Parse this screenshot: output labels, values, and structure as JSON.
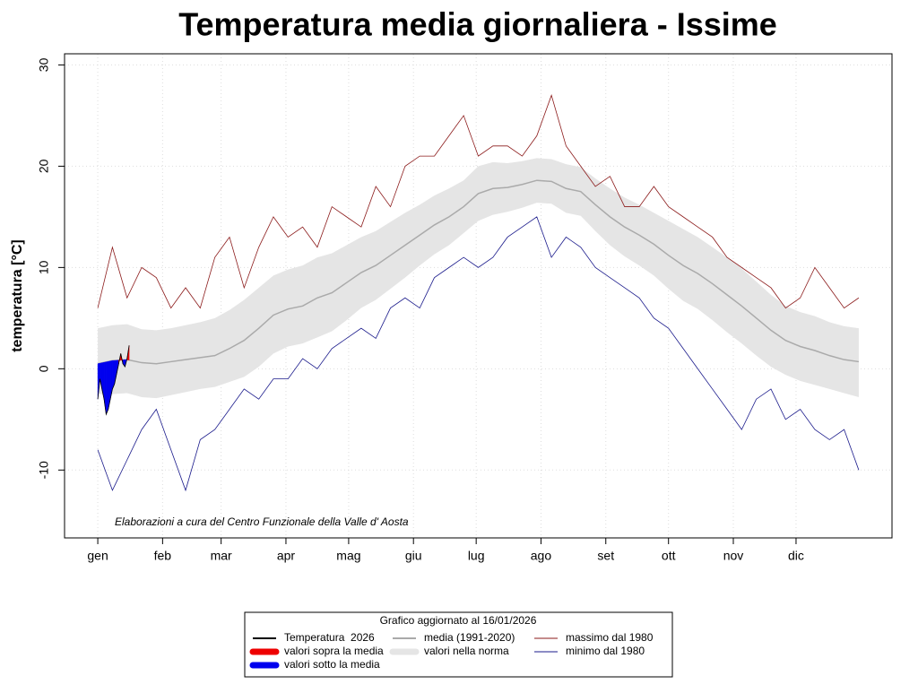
{
  "chart_data": {
    "type": "line",
    "title": "Temperatura media giornaliera - Issime",
    "ylabel": "temperatura [°C]",
    "annotation": "Elaborazioni a cura del Centro Funzionale della Valle d' Aosta",
    "update_note": "Grafico aggiornato al 16/01/2026",
    "xlim": [
      -14.9,
      380.9
    ],
    "ylim": [
      -16.7,
      31.1
    ],
    "xticks": [
      {
        "value": 1,
        "label": "gen"
      },
      {
        "value": 32,
        "label": "feb"
      },
      {
        "value": 60,
        "label": "mar"
      },
      {
        "value": 91,
        "label": "apr"
      },
      {
        "value": 121,
        "label": "mag"
      },
      {
        "value": 152,
        "label": "giu"
      },
      {
        "value": 182,
        "label": "lug"
      },
      {
        "value": 213,
        "label": "ago"
      },
      {
        "value": 244,
        "label": "set"
      },
      {
        "value": 274,
        "label": "ott"
      },
      {
        "value": 305,
        "label": "nov"
      },
      {
        "value": 335,
        "label": "dic"
      }
    ],
    "yticks": [
      -10,
      0,
      10,
      20,
      30
    ],
    "grid": true,
    "x": [
      1,
      8,
      15,
      22,
      29,
      36,
      43,
      50,
      57,
      64,
      71,
      78,
      85,
      92,
      99,
      106,
      113,
      120,
      127,
      134,
      141,
      148,
      155,
      162,
      169,
      176,
      183,
      190,
      197,
      204,
      211,
      218,
      225,
      232,
      239,
      246,
      253,
      260,
      267,
      274,
      281,
      288,
      295,
      302,
      309,
      316,
      323,
      330,
      337,
      344,
      351,
      358,
      365
    ],
    "band": {
      "name": "valori nella norma",
      "color": "#e5e5e5",
      "upper": [
        4.0,
        4.3,
        4.4,
        3.9,
        3.8,
        4.0,
        4.3,
        4.6,
        5.0,
        5.8,
        6.8,
        8.0,
        9.2,
        9.8,
        10.2,
        11.0,
        11.4,
        12.2,
        13.0,
        13.6,
        14.5,
        15.4,
        16.2,
        17.1,
        17.8,
        18.6,
        20.0,
        20.4,
        20.3,
        20.5,
        20.8,
        20.7,
        20.2,
        19.9,
        18.8,
        17.8,
        16.9,
        16.2,
        15.4,
        14.6,
        13.8,
        13.0,
        12.0,
        11.0,
        9.9,
        8.6,
        7.3,
        6.2,
        5.6,
        5.2,
        4.6,
        4.2,
        4.0
      ],
      "lower": [
        -2.5,
        -2.5,
        -2.4,
        -2.8,
        -2.9,
        -2.6,
        -2.3,
        -2.0,
        -1.8,
        -1.3,
        -0.8,
        0.2,
        1.5,
        2.2,
        2.5,
        3.1,
        3.7,
        4.8,
        6.0,
        6.8,
        7.9,
        9.0,
        10.2,
        11.3,
        12.2,
        13.4,
        14.6,
        15.2,
        15.5,
        15.9,
        16.4,
        16.3,
        15.4,
        15.1,
        13.6,
        12.2,
        11.1,
        10.2,
        9.2,
        7.9,
        6.7,
        5.9,
        4.8,
        3.6,
        2.5,
        1.3,
        0.2,
        -0.6,
        -1.2,
        -1.6,
        -2.0,
        -2.4,
        -2.8
      ]
    },
    "series": [
      {
        "name": "media (1991-2020)",
        "color": "#aaaaaa",
        "width": 1.5,
        "values": [
          0.5,
          0.8,
          0.9,
          0.6,
          0.5,
          0.7,
          0.9,
          1.1,
          1.3,
          2.0,
          2.8,
          4.0,
          5.3,
          5.9,
          6.2,
          7.0,
          7.5,
          8.5,
          9.5,
          10.2,
          11.2,
          12.2,
          13.2,
          14.2,
          15.0,
          16.0,
          17.3,
          17.8,
          17.9,
          18.2,
          18.6,
          18.5,
          17.8,
          17.5,
          16.2,
          15.0,
          14.0,
          13.2,
          12.3,
          11.2,
          10.2,
          9.4,
          8.4,
          7.3,
          6.2,
          5.0,
          3.8,
          2.8,
          2.2,
          1.8,
          1.3,
          0.9,
          0.7
        ]
      },
      {
        "name": "massimo dal 1980",
        "color": "#8b1a1a",
        "width": 0.8,
        "values": [
          6,
          12,
          7,
          10,
          9,
          6,
          8,
          6,
          11,
          13,
          8,
          12,
          15,
          13,
          14,
          12,
          16,
          15,
          14,
          18,
          16,
          20,
          21,
          21,
          23,
          25,
          21,
          22,
          22,
          21,
          23,
          27,
          22,
          20,
          18,
          19,
          16,
          16,
          18,
          16,
          15,
          14,
          13,
          11,
          10,
          9,
          8,
          6,
          7,
          10,
          8,
          6,
          7
        ]
      },
      {
        "name": "minimo dal 1980",
        "color": "#1a1a8b",
        "width": 0.8,
        "values": [
          -8,
          -12,
          -9,
          -6,
          -4,
          -8,
          -12,
          -7,
          -6,
          -4,
          -2,
          -3,
          -1,
          -1,
          1,
          0,
          2,
          3,
          4,
          3,
          6,
          7,
          6,
          9,
          10,
          11,
          10,
          11,
          13,
          14,
          15,
          11,
          13,
          12,
          10,
          9,
          8,
          7,
          5,
          4,
          2,
          0,
          -2,
          -4,
          -6,
          -3,
          -2,
          -5,
          -4,
          -6,
          -7,
          -6,
          -10
        ]
      }
    ],
    "current": {
      "name": "Temperatura  2026",
      "color": "#000000",
      "x": [
        1,
        2,
        3,
        4,
        5,
        6,
        7,
        8,
        9,
        10,
        11,
        12,
        13,
        14,
        15,
        16
      ],
      "values": [
        -3,
        -1,
        -2,
        -3,
        -4.5,
        -4,
        -3,
        -2,
        -1.5,
        -0.5,
        0.5,
        1.5,
        0.5,
        0.2,
        1,
        2.3
      ]
    },
    "above": {
      "name": "valori sopra la media",
      "color": "#ee0000"
    },
    "below": {
      "name": "valori sotto la media",
      "color": "#0000ee"
    }
  }
}
